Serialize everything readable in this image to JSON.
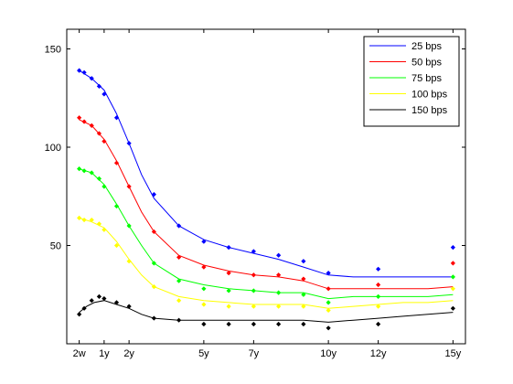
{
  "chart_data": {
    "type": "line",
    "title": "",
    "xlabel": "",
    "ylabel": "",
    "xlim": [
      -0.5,
      15.5
    ],
    "ylim": [
      0,
      160
    ],
    "xticks": [
      {
        "value": 0,
        "label": "2w"
      },
      {
        "value": 1,
        "label": "1y"
      },
      {
        "value": 2,
        "label": "2y"
      },
      {
        "value": 5,
        "label": "5y"
      },
      {
        "value": 7,
        "label": "7y"
      },
      {
        "value": 10,
        "label": "10y"
      },
      {
        "value": 12,
        "label": "12y"
      },
      {
        "value": 15,
        "label": "15y"
      }
    ],
    "yticks": [
      50,
      100,
      150
    ],
    "grid": false,
    "legend_position": "top-right",
    "series": [
      {
        "name": "25 bps",
        "color": "#0000ff",
        "line": [
          [
            0,
            139
          ],
          [
            0.5,
            135
          ],
          [
            1,
            129
          ],
          [
            1.5,
            117
          ],
          [
            2,
            102
          ],
          [
            2.5,
            86
          ],
          [
            3,
            74
          ],
          [
            4,
            60
          ],
          [
            5,
            53
          ],
          [
            6,
            49
          ],
          [
            7,
            46
          ],
          [
            8,
            43
          ],
          [
            9,
            39
          ],
          [
            10,
            35
          ],
          [
            11,
            34
          ],
          [
            12,
            34
          ],
          [
            13,
            34
          ],
          [
            14,
            34
          ],
          [
            15,
            34
          ]
        ],
        "points": [
          [
            0,
            139
          ],
          [
            0.2,
            138
          ],
          [
            0.5,
            135
          ],
          [
            0.8,
            131
          ],
          [
            1,
            127
          ],
          [
            1.5,
            115
          ],
          [
            2,
            102
          ],
          [
            3,
            76
          ],
          [
            4,
            60
          ],
          [
            5,
            52
          ],
          [
            6,
            49
          ],
          [
            7,
            47
          ],
          [
            8,
            45
          ],
          [
            9,
            42
          ],
          [
            10,
            36
          ],
          [
            12,
            38
          ],
          [
            15,
            49
          ]
        ]
      },
      {
        "name": "50 bps",
        "color": "#ff0000",
        "line": [
          [
            0,
            114
          ],
          [
            0.5,
            111
          ],
          [
            1,
            104
          ],
          [
            1.5,
            93
          ],
          [
            2,
            80
          ],
          [
            2.5,
            67
          ],
          [
            3,
            57
          ],
          [
            4,
            45
          ],
          [
            5,
            40
          ],
          [
            6,
            37
          ],
          [
            7,
            35
          ],
          [
            8,
            34
          ],
          [
            9,
            32
          ],
          [
            10,
            28
          ],
          [
            11,
            28
          ],
          [
            12,
            28
          ],
          [
            13,
            28
          ],
          [
            14,
            28
          ],
          [
            15,
            29
          ]
        ],
        "points": [
          [
            0,
            115
          ],
          [
            0.2,
            113
          ],
          [
            0.5,
            111
          ],
          [
            0.8,
            107
          ],
          [
            1,
            103
          ],
          [
            1.5,
            92
          ],
          [
            2,
            80
          ],
          [
            3,
            57
          ],
          [
            4,
            44
          ],
          [
            5,
            39
          ],
          [
            6,
            36
          ],
          [
            7,
            35
          ],
          [
            8,
            35
          ],
          [
            9,
            33
          ],
          [
            10,
            28
          ],
          [
            12,
            30
          ],
          [
            15,
            41
          ]
        ]
      },
      {
        "name": "75 bps",
        "color": "#00ff00",
        "line": [
          [
            0,
            89
          ],
          [
            0.5,
            87
          ],
          [
            1,
            81
          ],
          [
            1.5,
            71
          ],
          [
            2,
            60
          ],
          [
            2.5,
            50
          ],
          [
            3,
            41
          ],
          [
            4,
            33
          ],
          [
            5,
            30
          ],
          [
            6,
            28
          ],
          [
            7,
            27
          ],
          [
            8,
            26
          ],
          [
            9,
            26
          ],
          [
            10,
            23
          ],
          [
            11,
            24
          ],
          [
            12,
            24
          ],
          [
            13,
            24
          ],
          [
            14,
            24
          ],
          [
            15,
            25
          ]
        ],
        "points": [
          [
            0,
            89
          ],
          [
            0.2,
            88
          ],
          [
            0.5,
            87
          ],
          [
            0.8,
            84
          ],
          [
            1,
            80
          ],
          [
            1.5,
            70
          ],
          [
            2,
            60
          ],
          [
            3,
            41
          ],
          [
            4,
            32
          ],
          [
            5,
            28
          ],
          [
            6,
            27
          ],
          [
            7,
            27
          ],
          [
            8,
            26
          ],
          [
            9,
            25
          ],
          [
            10,
            21
          ],
          [
            12,
            24
          ],
          [
            15,
            34
          ]
        ]
      },
      {
        "name": "100 bps",
        "color": "#ffff00",
        "line": [
          [
            0,
            64
          ],
          [
            0.5,
            62
          ],
          [
            1,
            59
          ],
          [
            1.5,
            52
          ],
          [
            2,
            43
          ],
          [
            2.5,
            35
          ],
          [
            3,
            29
          ],
          [
            4,
            24
          ],
          [
            5,
            22
          ],
          [
            6,
            21
          ],
          [
            7,
            20
          ],
          [
            8,
            20
          ],
          [
            9,
            20
          ],
          [
            10,
            18
          ],
          [
            11,
            19
          ],
          [
            12,
            20
          ],
          [
            13,
            21
          ],
          [
            14,
            21
          ],
          [
            15,
            22
          ]
        ],
        "points": [
          [
            0,
            64
          ],
          [
            0.2,
            63
          ],
          [
            0.5,
            63
          ],
          [
            0.8,
            61
          ],
          [
            1,
            58
          ],
          [
            1.5,
            50
          ],
          [
            2,
            42
          ],
          [
            3,
            29
          ],
          [
            4,
            22
          ],
          [
            5,
            20
          ],
          [
            6,
            19
          ],
          [
            7,
            19
          ],
          [
            8,
            19
          ],
          [
            9,
            19
          ],
          [
            10,
            17
          ],
          [
            12,
            19
          ],
          [
            15,
            28
          ]
        ]
      },
      {
        "name": "150 bps",
        "color": "#000000",
        "line": [
          [
            0,
            16
          ],
          [
            0.3,
            19
          ],
          [
            0.6,
            21
          ],
          [
            1,
            22
          ],
          [
            1.5,
            20
          ],
          [
            2,
            18
          ],
          [
            2.5,
            15
          ],
          [
            3,
            13
          ],
          [
            4,
            12
          ],
          [
            5,
            12
          ],
          [
            6,
            12
          ],
          [
            7,
            12
          ],
          [
            8,
            12
          ],
          [
            9,
            12
          ],
          [
            10,
            11
          ],
          [
            11,
            12
          ],
          [
            12,
            13
          ],
          [
            13,
            14
          ],
          [
            14,
            15
          ],
          [
            15,
            16
          ]
        ],
        "points": [
          [
            0,
            15
          ],
          [
            0.2,
            18
          ],
          [
            0.5,
            22
          ],
          [
            0.8,
            24
          ],
          [
            1,
            23
          ],
          [
            1.5,
            21
          ],
          [
            2,
            19
          ],
          [
            3,
            13
          ],
          [
            4,
            12
          ],
          [
            5,
            10
          ],
          [
            6,
            10
          ],
          [
            7,
            10
          ],
          [
            8,
            10
          ],
          [
            9,
            10
          ],
          [
            10,
            8
          ],
          [
            12,
            10
          ],
          [
            15,
            18
          ]
        ]
      }
    ]
  }
}
